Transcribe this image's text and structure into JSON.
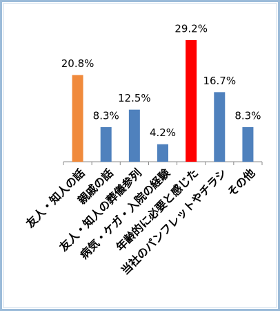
{
  "chart_data": {
    "type": "bar",
    "categories": [
      "友人・知人の話",
      "親戚の話",
      "友人・知人の葬儀参列",
      "病気・ケガ・入院の経験",
      "年齢的に必要と感じた",
      "当社のパンフレットやチラシ",
      "その他"
    ],
    "values": [
      20.8,
      8.3,
      12.5,
      4.2,
      29.2,
      16.7,
      8.3
    ],
    "value_labels": [
      "20.8%",
      "8.3%",
      "12.5%",
      "4.2%",
      "29.2%",
      "16.7%",
      "8.3%"
    ],
    "colors": [
      "#f08a3c",
      "#4f81bd",
      "#4f81bd",
      "#4f81bd",
      "#ff0000",
      "#4f81bd",
      "#4f81bd"
    ]
  }
}
